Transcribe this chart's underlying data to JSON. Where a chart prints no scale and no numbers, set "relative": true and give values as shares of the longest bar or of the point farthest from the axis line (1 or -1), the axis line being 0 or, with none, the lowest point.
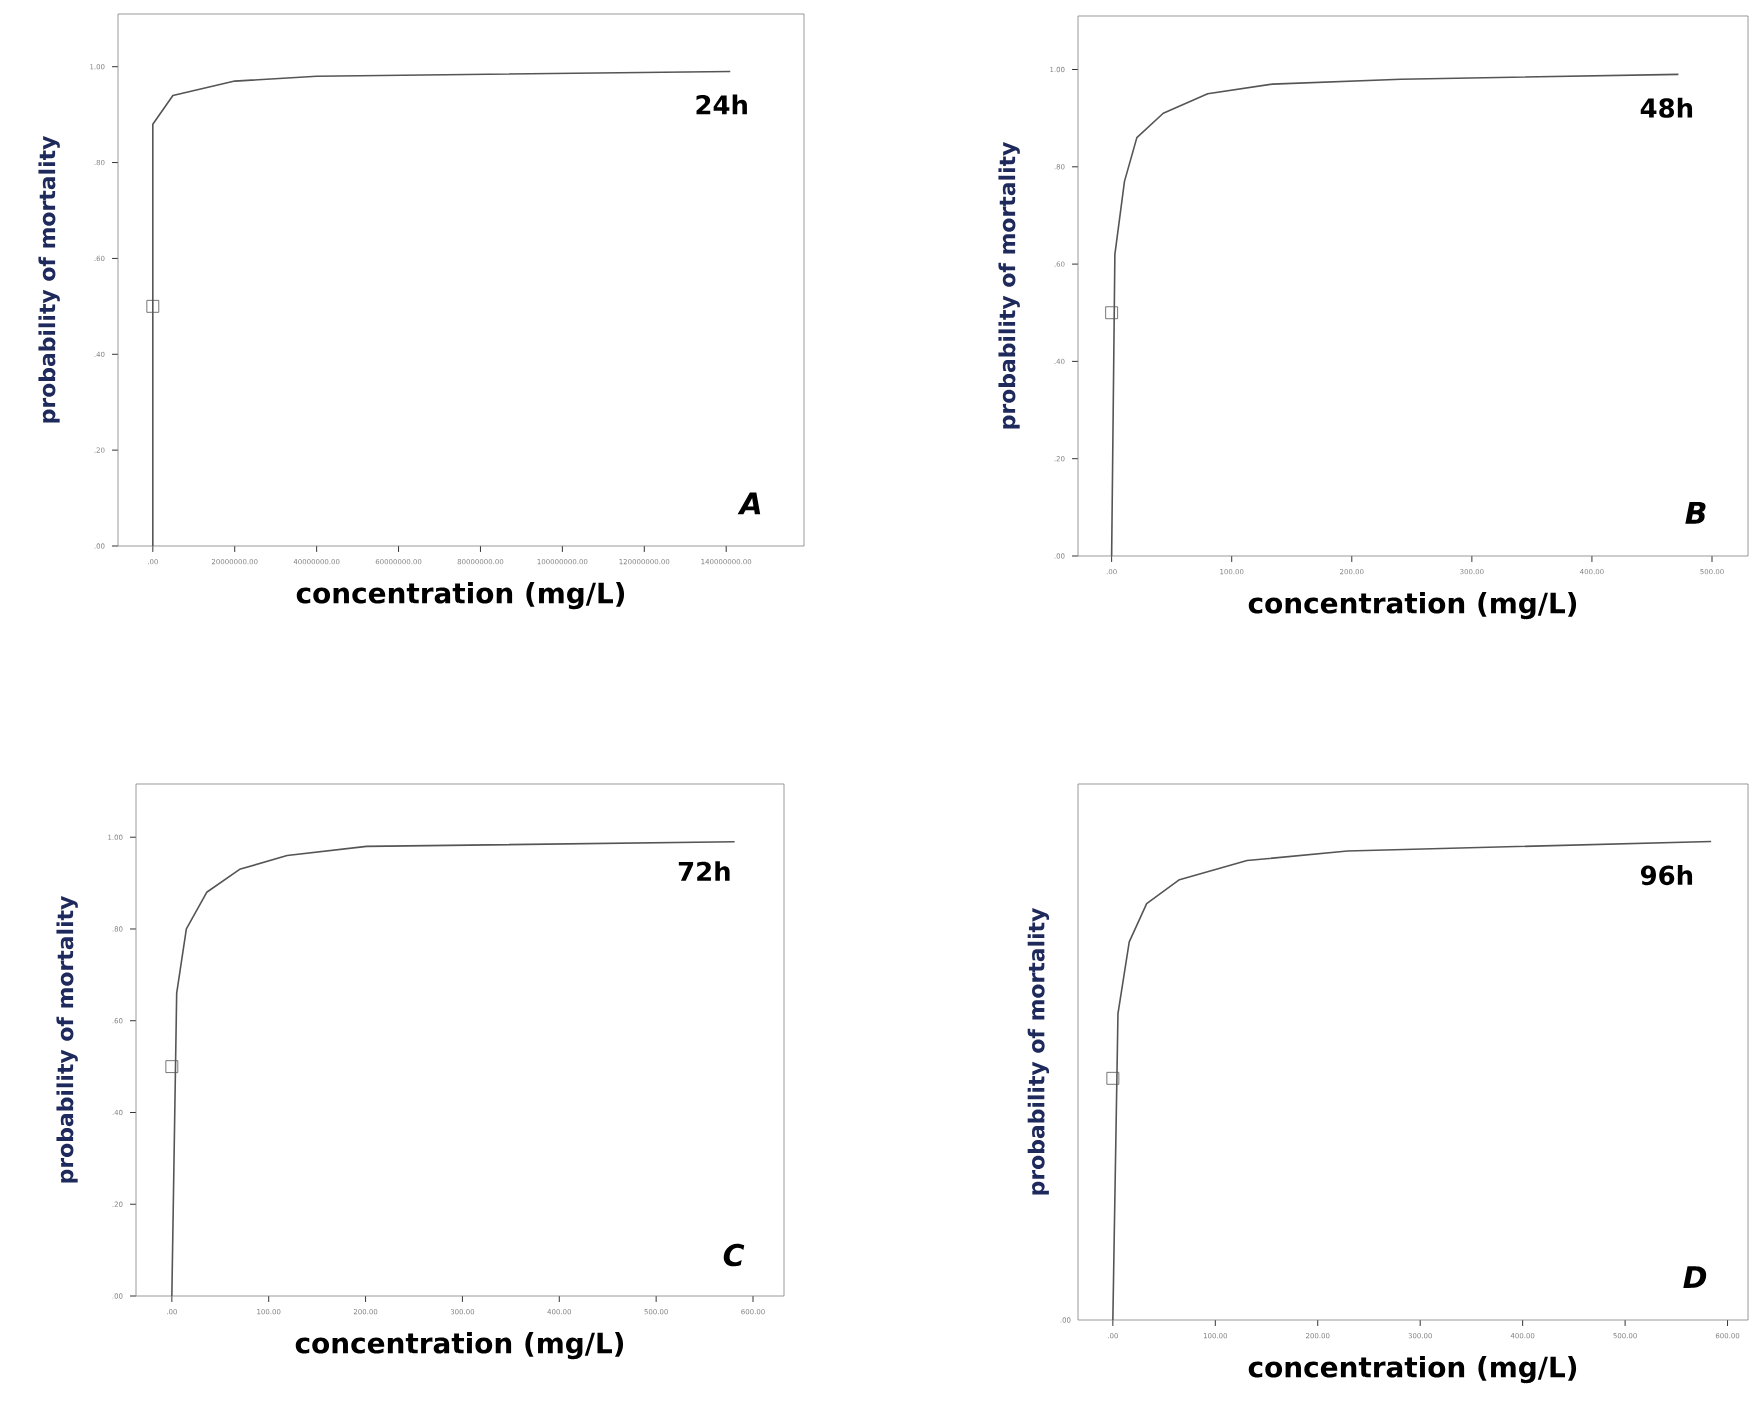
{
  "chart_data": [
    {
      "type": "line",
      "xlabel": "concentration  (mg/L)",
      "ylabel": "probability of mortality",
      "annotations": [
        "24h",
        "A"
      ],
      "xlim": [
        -8500000,
        159000000
      ],
      "ylim": [
        0,
        1.11
      ],
      "xticks": [
        {
          "value": 0,
          "label": ".00"
        },
        {
          "value": 20000000,
          "label": "20000000.00"
        },
        {
          "value": 40000000,
          "label": "40000000.00"
        },
        {
          "value": 60000000,
          "label": "60000000.00"
        },
        {
          "value": 80000000,
          "label": "80000000.00"
        },
        {
          "value": 100000000,
          "label": "100000000.00"
        },
        {
          "value": 120000000,
          "label": "120000000.00"
        },
        {
          "value": 140000000,
          "label": "140000000.00"
        }
      ],
      "yticks": [
        {
          "value": 0,
          "label": ".00"
        },
        {
          "value": 0.2,
          "label": ".20"
        },
        {
          "value": 0.4,
          "label": ".40"
        },
        {
          "value": 0.6,
          "label": ".60"
        },
        {
          "value": 0.8,
          "label": ".80"
        },
        {
          "value": 1,
          "label": "1.00"
        }
      ],
      "series": [
        {
          "type": "line",
          "color": "#555555",
          "marker": "none",
          "x": [
            0,
            0,
            4900000,
            20000000,
            40000000,
            141000000
          ],
          "values": [
            0,
            0.88,
            0.94,
            0.97,
            0.98,
            0.99
          ]
        },
        {
          "type": "scatter",
          "color": "#555555",
          "marker": "square",
          "x": [
            0
          ],
          "values": [
            0.5
          ]
        }
      ]
    },
    {
      "type": "line",
      "xlabel": "concentration (mg/L)",
      "ylabel": "probability of mortality",
      "annotations": [
        "48h",
        "B"
      ],
      "xlim": [
        -28,
        530
      ],
      "ylim": [
        0,
        1.11
      ],
      "xticks": [
        {
          "value": 0,
          "label": ".00"
        },
        {
          "value": 100,
          "label": "100.00"
        },
        {
          "value": 200,
          "label": "200.00"
        },
        {
          "value": 300,
          "label": "300.00"
        },
        {
          "value": 400,
          "label": "400.00"
        },
        {
          "value": 500,
          "label": "500.00"
        }
      ],
      "yticks": [
        {
          "value": 0,
          "label": ".00"
        },
        {
          "value": 0.2,
          "label": ".20"
        },
        {
          "value": 0.4,
          "label": ".40"
        },
        {
          "value": 0.6,
          "label": ".60"
        },
        {
          "value": 0.8,
          "label": ".80"
        },
        {
          "value": 1,
          "label": "1.00"
        }
      ],
      "series": [
        {
          "type": "line",
          "color": "#555555",
          "marker": "none",
          "x": [
            0,
            2.7,
            10.7,
            21,
            43,
            80,
            134,
            241,
            472
          ],
          "values": [
            0,
            0.62,
            0.77,
            0.86,
            0.91,
            0.95,
            0.97,
            0.98,
            0.99
          ]
        },
        {
          "type": "scatter",
          "color": "#555555",
          "marker": "square",
          "x": [
            0
          ],
          "values": [
            0.5
          ]
        }
      ]
    },
    {
      "type": "line",
      "xlabel": "concentration (mg/L)",
      "ylabel": "probability of mortality",
      "annotations": [
        "72h",
        "C"
      ],
      "xlim": [
        -37,
        632
      ],
      "ylim": [
        0,
        1.116
      ],
      "xticks": [
        {
          "value": 0,
          "label": ".00"
        },
        {
          "value": 100,
          "label": "100.00"
        },
        {
          "value": 200,
          "label": "200.00"
        },
        {
          "value": 300,
          "label": "300.00"
        },
        {
          "value": 400,
          "label": "400.00"
        },
        {
          "value": 500,
          "label": "500.00"
        },
        {
          "value": 600,
          "label": "600.00"
        }
      ],
      "yticks": [
        {
          "value": 0,
          "label": ".00"
        },
        {
          "value": 0.2,
          "label": ".20"
        },
        {
          "value": 0.4,
          "label": ".40"
        },
        {
          "value": 0.6,
          "label": ".60"
        },
        {
          "value": 0.8,
          "label": ".80"
        },
        {
          "value": 1,
          "label": "1.00"
        }
      ],
      "series": [
        {
          "type": "line",
          "color": "#555555",
          "marker": "none",
          "x": [
            0,
            5,
            15,
            36,
            70,
            119,
            201,
            581
          ],
          "values": [
            0,
            0.66,
            0.8,
            0.88,
            0.93,
            0.96,
            0.98,
            0.99
          ]
        },
        {
          "type": "scatter",
          "color": "#555555",
          "marker": "square",
          "x": [
            0
          ],
          "values": [
            0.5
          ]
        }
      ]
    },
    {
      "type": "line",
      "relative": true,
      "xlabel": "concentration  (mg/L)",
      "ylabel": "probability of mortality",
      "annotations": [
        "96h",
        "D",
        ".00"
      ],
      "xlim": [
        -34,
        620
      ],
      "xticks": [
        {
          "value": 0,
          "label": ".00"
        },
        {
          "value": 100,
          "label": "100.00"
        },
        {
          "value": 200,
          "label": "200.00"
        },
        {
          "value": 300,
          "label": "300.00"
        },
        {
          "value": 400,
          "label": "400.00"
        },
        {
          "value": 500,
          "label": "500.00"
        },
        {
          "value": 600,
          "label": "600.00"
        }
      ],
      "series": [
        {
          "type": "line",
          "color": "#555555",
          "marker": "none",
          "x": [
            0,
            5,
            16,
            33,
            65,
            131,
            229,
            584
          ],
          "values": [
            0,
            0.64,
            0.79,
            0.87,
            0.92,
            0.96,
            0.98,
            1
          ]
        },
        {
          "type": "scatter",
          "color": "#555555",
          "marker": "square",
          "x": [
            0
          ],
          "values": [
            0.505
          ]
        }
      ]
    }
  ]
}
